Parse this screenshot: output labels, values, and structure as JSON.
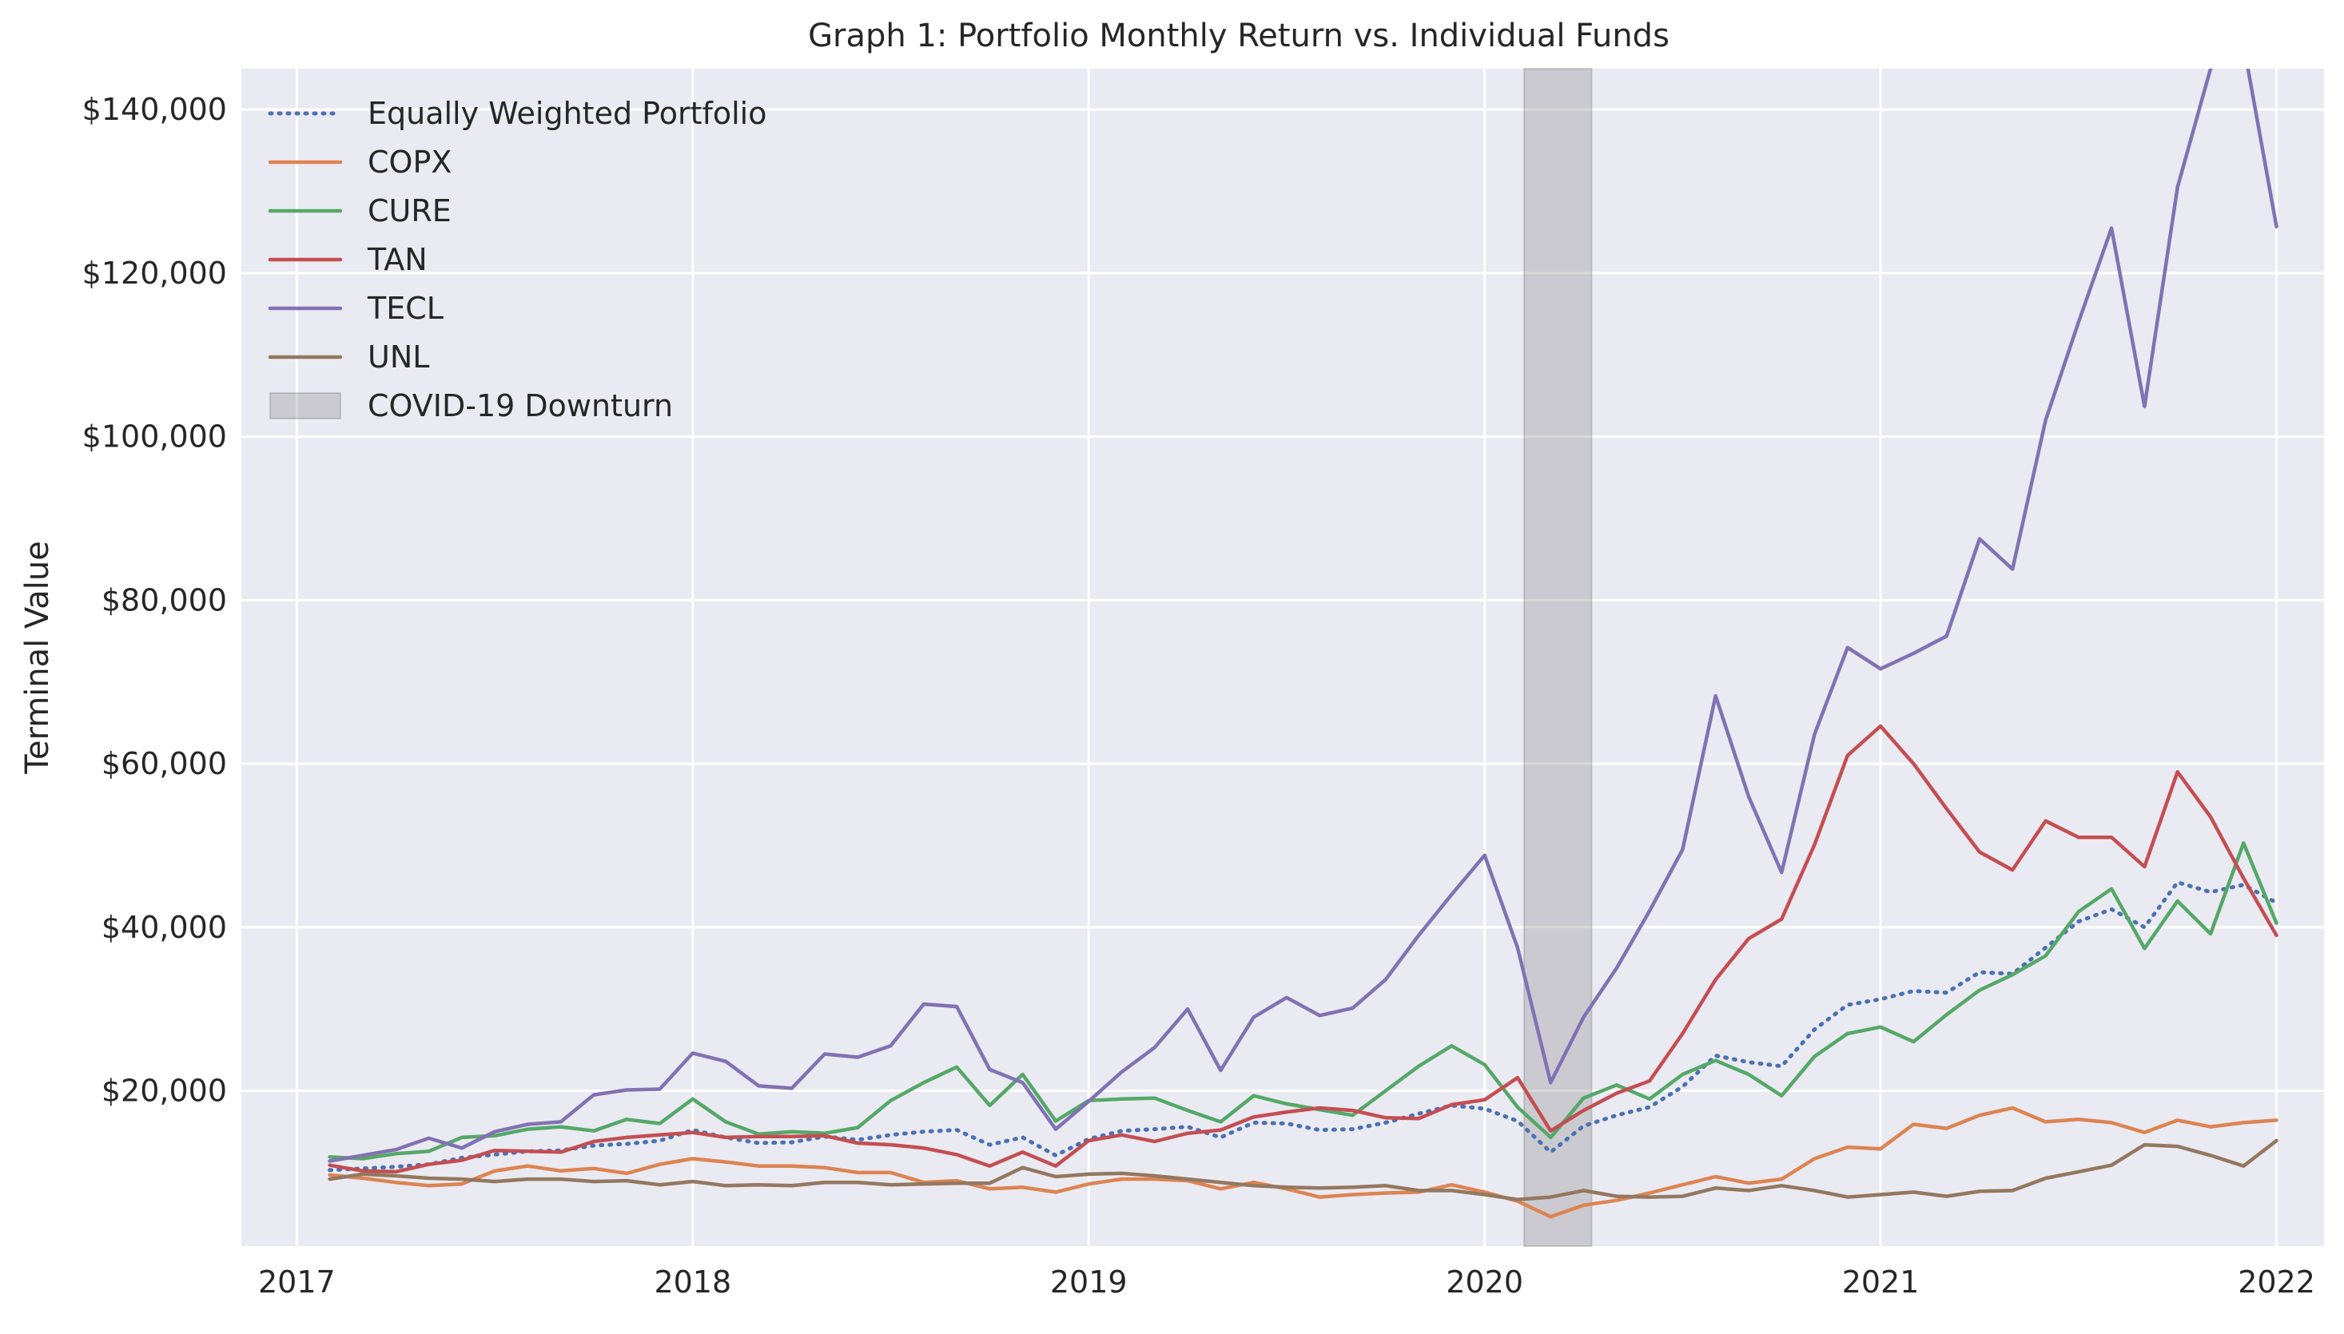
{
  "chart_data": {
    "type": "line",
    "title": "Graph 1: Portfolio Monthly Return vs. Individual Funds",
    "xlabel": "",
    "ylabel": "Terminal Value",
    "xlim": [
      2016.86,
      2022.12
    ],
    "ylim": [
      1000,
      145000
    ],
    "grid": true,
    "background": "#eaeaf2",
    "legend_position": "top-left",
    "x_ticks": [
      {
        "value": 2017,
        "label": "2017"
      },
      {
        "value": 2018,
        "label": "2018"
      },
      {
        "value": 2019,
        "label": "2019"
      },
      {
        "value": 2020,
        "label": "2020"
      },
      {
        "value": 2021,
        "label": "2021"
      },
      {
        "value": 2022,
        "label": "2022"
      }
    ],
    "y_ticks": [
      {
        "value": 20000,
        "label": "$20,000"
      },
      {
        "value": 40000,
        "label": "$40,000"
      },
      {
        "value": 60000,
        "label": "$60,000"
      },
      {
        "value": 80000,
        "label": "$80,000"
      },
      {
        "value": 100000,
        "label": "$100,000"
      },
      {
        "value": 120000,
        "label": "$120,000"
      },
      {
        "value": 140000,
        "label": "$140,000"
      }
    ],
    "x": [
      2017.0833,
      2017.1667,
      2017.25,
      2017.3333,
      2017.4167,
      2017.5,
      2017.5833,
      2017.6667,
      2017.75,
      2017.8333,
      2017.9167,
      2018.0,
      2018.0833,
      2018.1667,
      2018.25,
      2018.3333,
      2018.4167,
      2018.5,
      2018.5833,
      2018.6667,
      2018.75,
      2018.8333,
      2018.9167,
      2019.0,
      2019.0833,
      2019.1667,
      2019.25,
      2019.3333,
      2019.4167,
      2019.5,
      2019.5833,
      2019.6667,
      2019.75,
      2019.8333,
      2019.9167,
      2020.0,
      2020.0833,
      2020.1667,
      2020.25,
      2020.3333,
      2020.4167,
      2020.5,
      2020.5833,
      2020.6667,
      2020.75,
      2020.8333,
      2020.9167,
      2021.0,
      2021.0833,
      2021.1667,
      2021.25,
      2021.3333,
      2021.4167,
      2021.5,
      2021.5833,
      2021.6667,
      2021.75,
      2021.8333,
      2021.9167,
      2022.0
    ],
    "series": [
      {
        "name": "Equally Weighted Portfolio",
        "color": "#4c72b0",
        "dash": "dotted",
        "values": [
          10300,
          10500,
          10700,
          11000,
          11800,
          12200,
          12600,
          12700,
          13300,
          13500,
          13900,
          15200,
          14300,
          13600,
          13700,
          14400,
          14000,
          14600,
          15000,
          15200,
          13400,
          14300,
          12100,
          14100,
          15100,
          15300,
          15600,
          14300,
          16100,
          16000,
          15200,
          15300,
          16100,
          17200,
          18200,
          17800,
          16300,
          12500,
          15700,
          17000,
          18000,
          20500,
          24300,
          23500,
          23000,
          27500,
          30500,
          31200,
          32200,
          32000,
          34500,
          34300,
          37500,
          40700,
          42200,
          40000,
          45500,
          44300,
          45200,
          43000
        ]
      },
      {
        "name": "COPX",
        "color": "#dd8452",
        "dash": "solid",
        "values": [
          9700,
          9300,
          8800,
          8400,
          8600,
          10200,
          10800,
          10200,
          10500,
          9900,
          11000,
          11700,
          11300,
          10800,
          10800,
          10600,
          10000,
          10000,
          8800,
          9000,
          8000,
          8200,
          7600,
          8600,
          9200,
          9200,
          9000,
          8000,
          8800,
          8000,
          7000,
          7300,
          7500,
          7600,
          8500,
          7600,
          6500,
          4600,
          6000,
          6600,
          7500,
          8500,
          9500,
          8700,
          9200,
          11700,
          13100,
          12900,
          15900,
          15400,
          17000,
          17900,
          16200,
          16500,
          16100,
          14900,
          16400,
          15600,
          16100,
          16400
        ]
      },
      {
        "name": "CURE",
        "color": "#55a868",
        "dash": "solid",
        "values": [
          11900,
          11700,
          12300,
          12600,
          14300,
          14500,
          15300,
          15600,
          15100,
          16500,
          16000,
          19000,
          16200,
          14700,
          15000,
          14800,
          15500,
          18800,
          21000,
          22900,
          18200,
          22000,
          16300,
          18800,
          19000,
          19100,
          17600,
          16200,
          19400,
          18400,
          17700,
          17000,
          20000,
          23000,
          25500,
          23200,
          18000,
          14300,
          19100,
          20700,
          19000,
          22000,
          23700,
          22000,
          19400,
          24200,
          27000,
          27800,
          26000,
          29300,
          32300,
          34200,
          36500,
          41900,
          44700,
          37400,
          43200,
          39200,
          50300,
          40500
        ]
      },
      {
        "name": "TAN",
        "color": "#c44e52",
        "dash": "solid",
        "values": [
          10900,
          10200,
          10100,
          11000,
          11500,
          12700,
          12600,
          12500,
          13800,
          14300,
          14600,
          14900,
          14300,
          14400,
          14400,
          14500,
          13600,
          13400,
          13000,
          12200,
          10800,
          12500,
          10800,
          13900,
          14600,
          13800,
          14800,
          15200,
          16800,
          17400,
          17900,
          17600,
          16700,
          16600,
          18300,
          18900,
          21600,
          15100,
          17600,
          19700,
          21200,
          27000,
          33600,
          38600,
          41000,
          50100,
          61000,
          64600,
          60000,
          54500,
          49200,
          47000,
          53000,
          51000,
          51000,
          47400,
          59000,
          53500,
          46000,
          39000
        ]
      },
      {
        "name": "TECL",
        "color": "#8172b3",
        "dash": "solid",
        "values": [
          11400,
          12100,
          12800,
          14200,
          13000,
          15000,
          15900,
          16200,
          19500,
          20100,
          20200,
          24600,
          23600,
          20600,
          20300,
          24500,
          24100,
          25500,
          30600,
          30300,
          22600,
          21000,
          15300,
          18700,
          22300,
          25300,
          30000,
          22500,
          29000,
          31400,
          29200,
          30100,
          33600,
          39000,
          44000,
          48800,
          37500,
          21000,
          29000,
          35000,
          42000,
          49500,
          68300,
          56000,
          46700,
          63600,
          74200,
          71600,
          73500,
          75600,
          87500,
          83800,
          102000,
          114000,
          125500,
          103700,
          130500,
          145000,
          148000,
          125700
        ]
      },
      {
        "name": "UNL",
        "color": "#937860",
        "dash": "solid",
        "values": [
          9200,
          9800,
          9600,
          9300,
          9200,
          8900,
          9200,
          9200,
          8900,
          9000,
          8500,
          8900,
          8400,
          8500,
          8400,
          8800,
          8800,
          8500,
          8600,
          8700,
          8700,
          10600,
          9500,
          9800,
          9900,
          9600,
          9200,
          8800,
          8400,
          8200,
          8100,
          8200,
          8400,
          7800,
          7800,
          7300,
          6700,
          7000,
          7800,
          7100,
          7000,
          7100,
          8100,
          7800,
          8400,
          7800,
          7000,
          7300,
          7600,
          7100,
          7700,
          7800,
          9300,
          10100,
          10900,
          13400,
          13200,
          12100,
          10800,
          13900
        ]
      }
    ],
    "shaded_region": {
      "label": "COVID-19 Downturn",
      "x_start": 2020.1,
      "x_end": 2020.27,
      "color": "#808080"
    }
  }
}
